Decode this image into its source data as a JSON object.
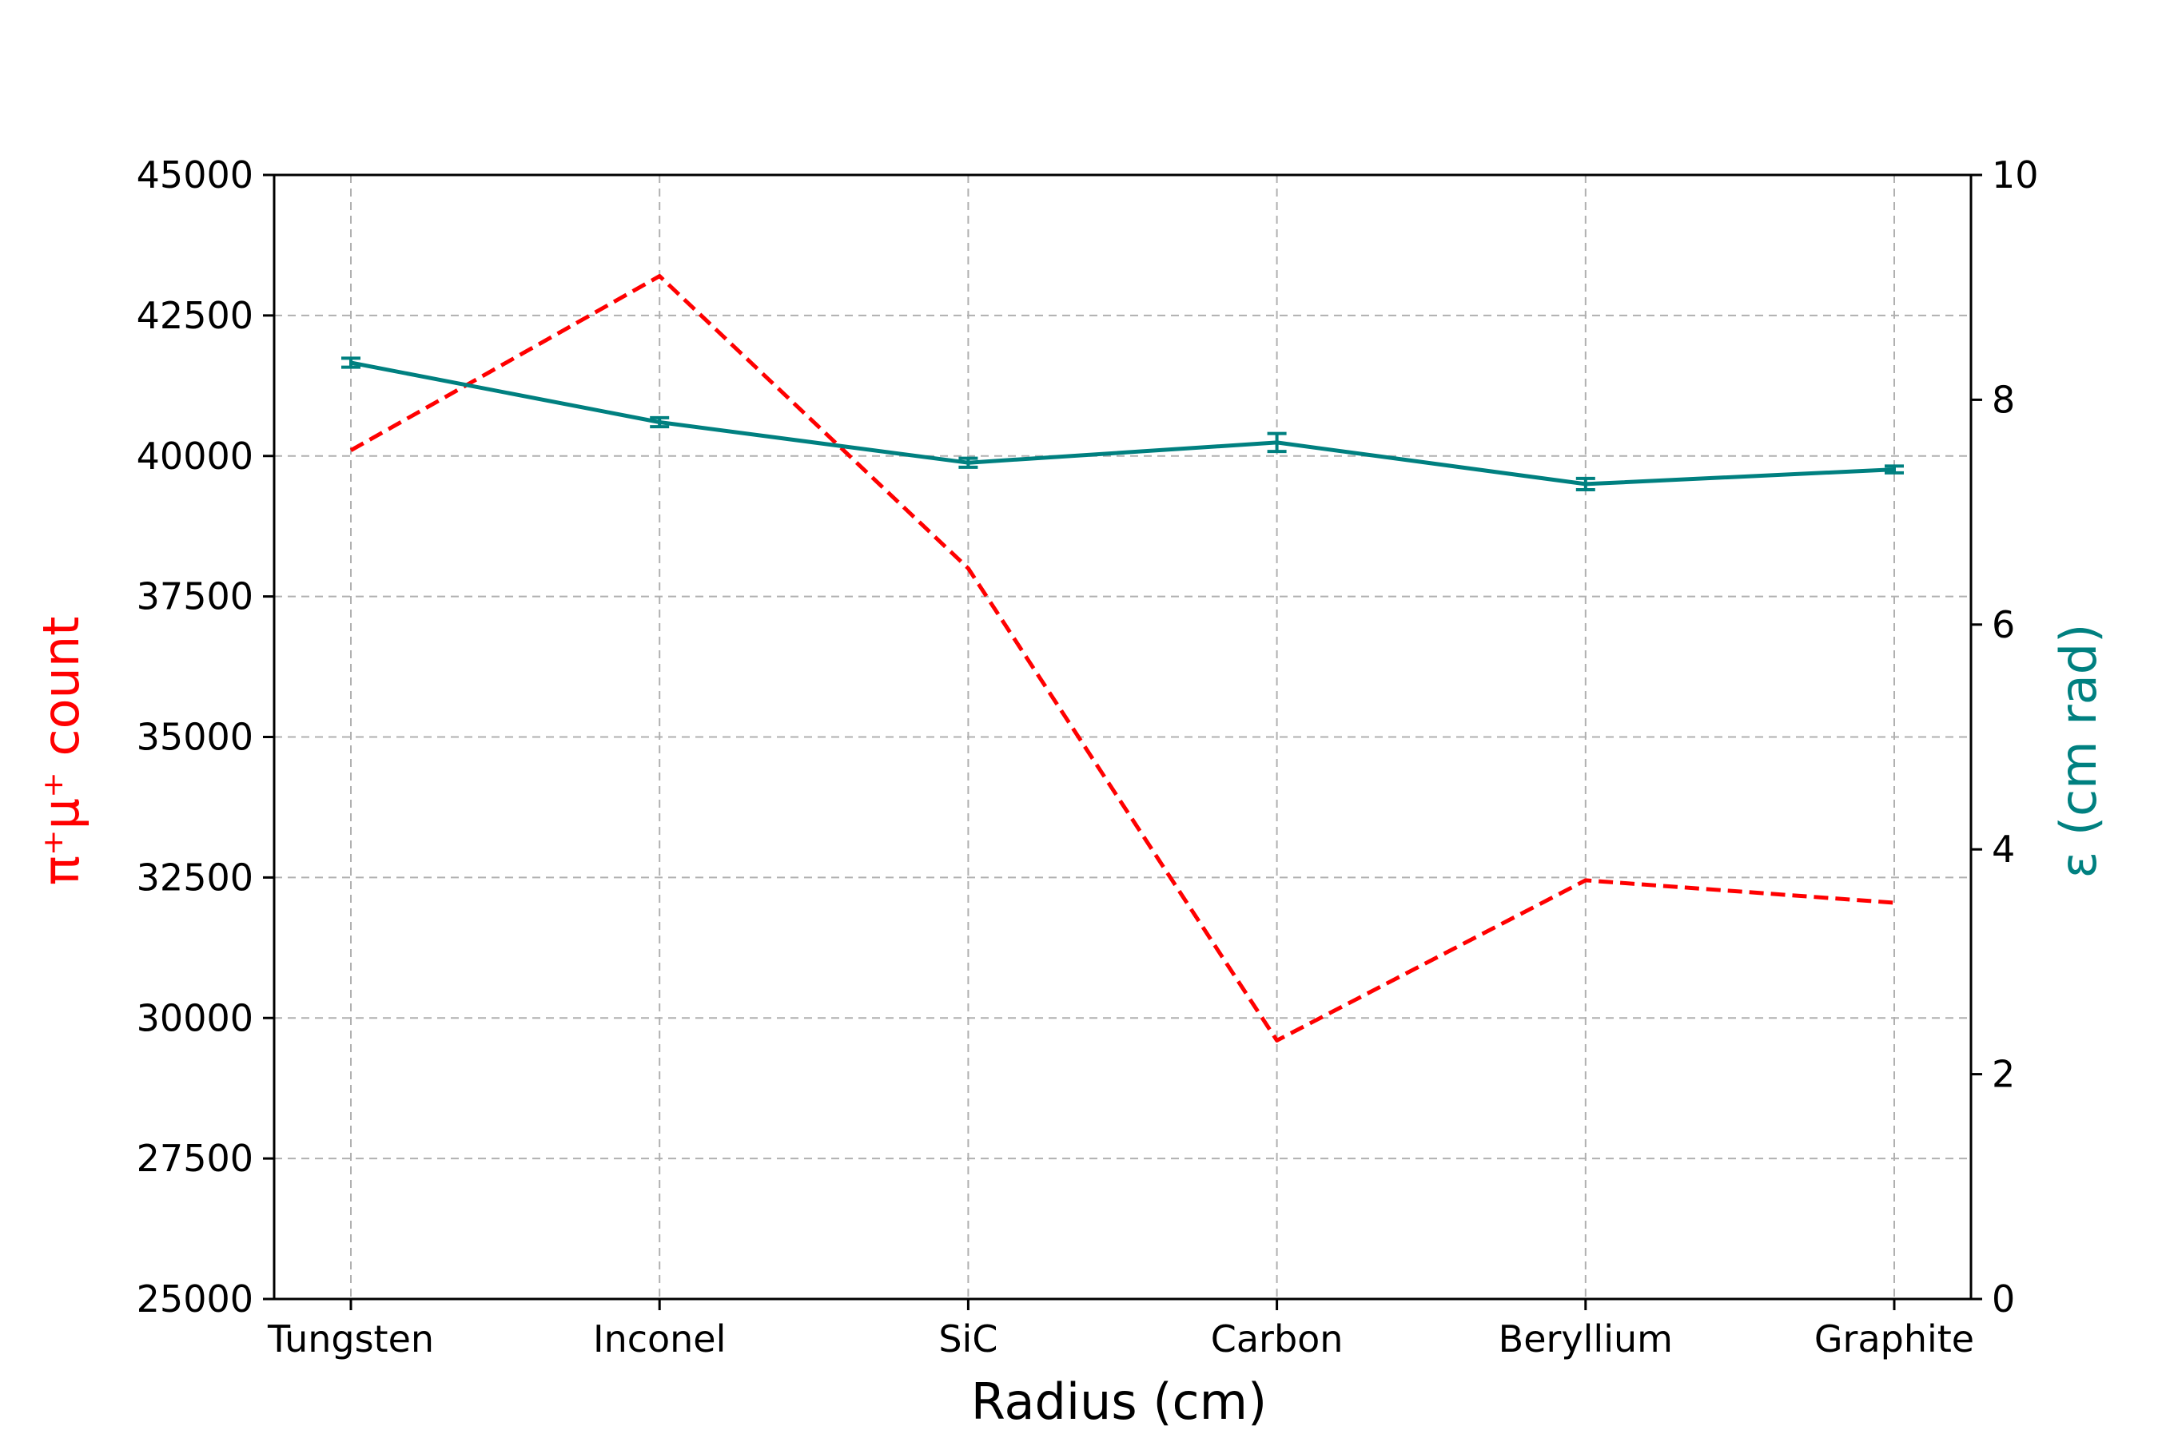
{
  "chart_data": {
    "type": "line",
    "categories": [
      "Tungsten",
      "Inconel",
      "SiC",
      "Carbon",
      "Beryllium",
      "Graphite"
    ],
    "xlabel": "Radius (cm)",
    "ylabel_left": "π⁺μ⁺ count",
    "ylabel_right": "ε (cm rad)",
    "ylim_left": [
      25000,
      45000
    ],
    "ylim_right": [
      0,
      10
    ],
    "yticks_left": [
      "25000",
      "27500",
      "30000",
      "32500",
      "35000",
      "37500",
      "40000",
      "42500",
      "45000"
    ],
    "yticks_right": [
      "0",
      "2",
      "4",
      "6",
      "8",
      "10"
    ],
    "grid": true,
    "series": [
      {
        "axis": "left",
        "style": "dashed",
        "color": "#ff0000",
        "values": [
          40100,
          43200,
          38000,
          29600,
          32450,
          32050
        ]
      },
      {
        "axis": "right",
        "style": "solid",
        "color": "#008080",
        "values": [
          8.33,
          7.8,
          7.44,
          7.62,
          7.25,
          7.38
        ],
        "errors": [
          0.04,
          0.04,
          0.04,
          0.08,
          0.05,
          0.03
        ]
      }
    ]
  }
}
